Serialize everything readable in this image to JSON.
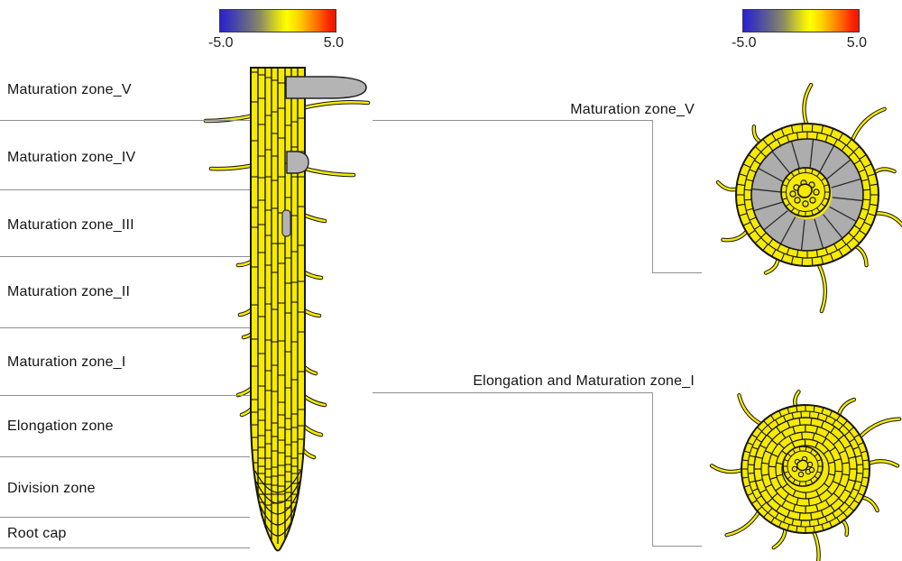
{
  "colorbars": {
    "left": {
      "min": "-5.0",
      "max": "5.0"
    },
    "right": {
      "min": "-5.0",
      "max": "5.0"
    }
  },
  "scale": {
    "min": -5.0,
    "max": 5.0,
    "gradient_order": [
      "blue",
      "gray",
      "yellow",
      "orange",
      "red"
    ]
  },
  "zones": [
    {
      "label": "Maturation zone_V"
    },
    {
      "label": "Maturation zone_IV"
    },
    {
      "label": "Maturation zone_III"
    },
    {
      "label": "Maturation zone_II"
    },
    {
      "label": "Maturation zone_I"
    },
    {
      "label": "Elongation zone"
    },
    {
      "label": "Division zone"
    },
    {
      "label": "Root cap"
    }
  ],
  "cross_sections": {
    "top": {
      "label": "Maturation zone_V"
    },
    "bottom": {
      "label": "Elongation and Maturation zone_I"
    }
  },
  "colors": {
    "cell_yellow": "#F6EA00",
    "outline_black": "#161616",
    "primordium_gray": "#B4B4B4",
    "cortex_gray": "#ADADAD",
    "line_gray": "#8F8F8F"
  }
}
